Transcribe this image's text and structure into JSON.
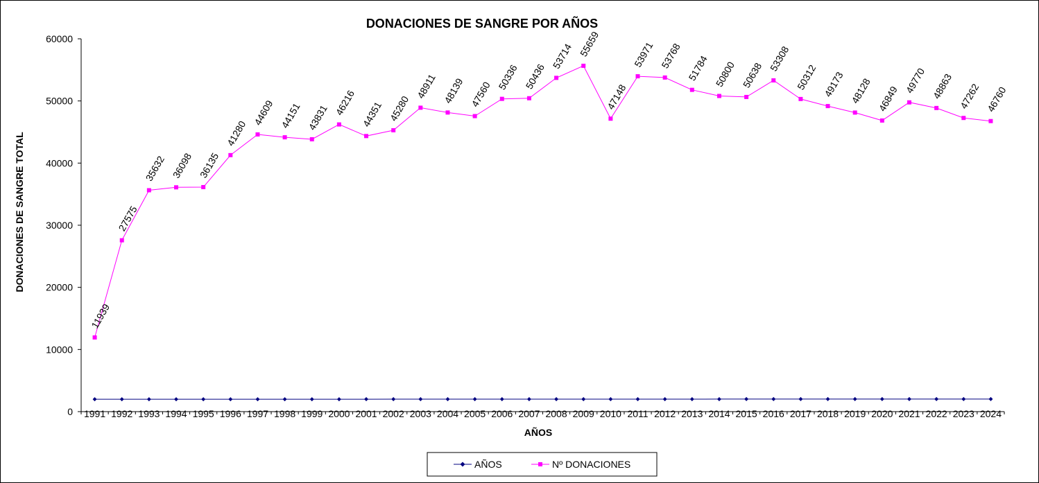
{
  "chart_data": {
    "type": "line",
    "title": "DONACIONES DE SANGRE POR AÑOS",
    "xlabel": "AÑOS",
    "ylabel": "DONACIONES DE SANGRE TOTAL",
    "ylim": [
      0,
      60000
    ],
    "yticks": [
      "0",
      "10000",
      "20000",
      "30000",
      "40000",
      "50000",
      "60000"
    ],
    "categories": [
      "1991",
      "1992",
      "1993",
      "1994",
      "1995",
      "1996",
      "1997",
      "1998",
      "1999",
      "2000",
      "2001",
      "2002",
      "2003",
      "2004",
      "2005",
      "2006",
      "2007",
      "2008",
      "2009",
      "2010",
      "2011",
      "2012",
      "2013",
      "2014",
      "2015",
      "2016",
      "2017",
      "2018",
      "2019",
      "2020",
      "2021",
      "2022",
      "2023",
      "2024"
    ],
    "series": [
      {
        "name": "AÑOS",
        "color": "#000080",
        "marker": "diamond",
        "values": [
          1991,
          1992,
          1993,
          1994,
          1995,
          1996,
          1997,
          1998,
          1999,
          2000,
          2001,
          2002,
          2003,
          2004,
          2005,
          2006,
          2007,
          2008,
          2009,
          2010,
          2011,
          2012,
          2013,
          2014,
          2015,
          2016,
          2017,
          2018,
          2019,
          2020,
          2021,
          2022,
          2023,
          2024
        ]
      },
      {
        "name": "Nº DONACIONES",
        "color": "#ff00ff",
        "marker": "square",
        "show_labels": true,
        "values": [
          11939,
          27575,
          35632,
          36098,
          36135,
          41280,
          44609,
          44151,
          43831,
          46216,
          44351,
          45280,
          48911,
          48139,
          47560,
          50336,
          50436,
          53714,
          55659,
          47148,
          53971,
          53768,
          51784,
          50800,
          50638,
          53308,
          50312,
          49173,
          48128,
          46849,
          49770,
          48863,
          47262,
          46760
        ]
      }
    ],
    "grid": false,
    "legend_position": "bottom"
  }
}
